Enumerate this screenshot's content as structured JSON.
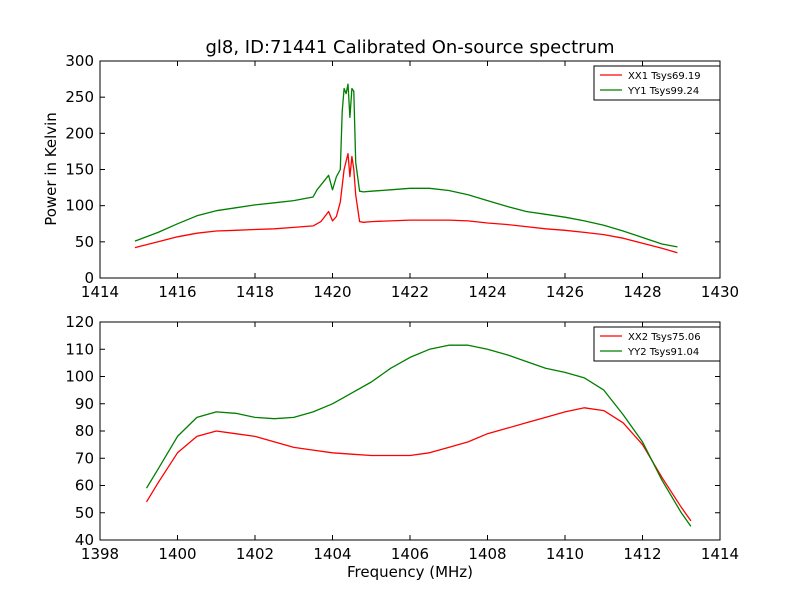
{
  "figure": {
    "title": "gl8, ID:71441 Calibrated On-source spectrum",
    "ylabel": "Power in Kelvin",
    "xlabel": "Frequency (MHz)"
  },
  "colors": {
    "xx": "#ff0000",
    "yy": "#007f00"
  },
  "chart_data": [
    {
      "type": "line",
      "xlim": [
        1414,
        1430
      ],
      "ylim": [
        0,
        300
      ],
      "xticks": [
        1414,
        1416,
        1418,
        1420,
        1422,
        1424,
        1426,
        1428,
        1430
      ],
      "yticks": [
        0,
        50,
        100,
        150,
        200,
        250,
        300
      ],
      "legend": "top-right",
      "grid": false,
      "series": [
        {
          "name": "XX1 Tsys69.19",
          "color": "#ff0000",
          "x": [
            1414.9,
            1415.5,
            1416.0,
            1416.5,
            1417.0,
            1417.5,
            1418.0,
            1418.5,
            1419.0,
            1419.5,
            1419.7,
            1419.9,
            1420.0,
            1420.1,
            1420.2,
            1420.3,
            1420.4,
            1420.45,
            1420.5,
            1420.55,
            1420.6,
            1420.7,
            1420.8,
            1421.0,
            1421.5,
            1422.0,
            1422.5,
            1423.0,
            1423.5,
            1424.0,
            1424.5,
            1425.0,
            1425.5,
            1426.0,
            1426.5,
            1427.0,
            1427.5,
            1428.0,
            1428.5,
            1428.9
          ],
          "y": [
            42,
            50,
            57,
            62,
            65,
            66,
            67,
            68,
            70,
            72,
            78,
            92,
            79,
            85,
            105,
            150,
            172,
            140,
            168,
            150,
            115,
            78,
            77,
            78,
            79,
            80,
            80,
            80,
            79,
            76,
            74,
            71,
            68,
            66,
            63,
            60,
            55,
            48,
            41,
            35
          ]
        },
        {
          "name": "YY1 Tsys99.24",
          "color": "#007f00",
          "x": [
            1414.9,
            1415.5,
            1416.0,
            1416.5,
            1417.0,
            1417.5,
            1418.0,
            1418.5,
            1419.0,
            1419.5,
            1419.6,
            1419.8,
            1419.9,
            1420.0,
            1420.1,
            1420.2,
            1420.25,
            1420.3,
            1420.35,
            1420.4,
            1420.45,
            1420.5,
            1420.55,
            1420.6,
            1420.7,
            1420.8,
            1421.0,
            1421.5,
            1422.0,
            1422.5,
            1423.0,
            1423.5,
            1424.0,
            1424.5,
            1425.0,
            1425.5,
            1426.0,
            1426.5,
            1427.0,
            1427.5,
            1428.0,
            1428.5,
            1428.9
          ],
          "y": [
            51,
            63,
            75,
            86,
            93,
            97,
            101,
            104,
            107,
            112,
            122,
            135,
            142,
            122,
            140,
            150,
            230,
            262,
            255,
            268,
            222,
            262,
            258,
            160,
            120,
            119,
            120,
            122,
            124,
            124,
            121,
            115,
            107,
            99,
            92,
            88,
            84,
            79,
            73,
            65,
            56,
            47,
            43
          ]
        }
      ]
    },
    {
      "type": "line",
      "xlim": [
        1398,
        1414
      ],
      "ylim": [
        40,
        120
      ],
      "xticks": [
        1398,
        1400,
        1402,
        1404,
        1406,
        1408,
        1410,
        1412,
        1414
      ],
      "yticks": [
        40,
        50,
        60,
        70,
        80,
        90,
        100,
        110,
        120
      ],
      "legend": "top-right",
      "grid": false,
      "series": [
        {
          "name": "XX2 Tsys75.06",
          "color": "#ff0000",
          "x": [
            1399.2,
            1399.5,
            1400.0,
            1400.5,
            1401.0,
            1401.5,
            1402.0,
            1402.5,
            1403.0,
            1403.5,
            1404.0,
            1404.5,
            1405.0,
            1405.5,
            1406.0,
            1406.5,
            1407.0,
            1407.5,
            1408.0,
            1408.5,
            1409.0,
            1409.5,
            1410.0,
            1410.5,
            1411.0,
            1411.5,
            1412.0,
            1412.5,
            1413.0,
            1413.25
          ],
          "y": [
            54,
            61,
            72,
            78,
            80,
            79,
            78,
            76,
            74,
            73,
            72,
            71.5,
            71,
            71,
            71,
            72,
            74,
            76,
            79,
            81,
            83,
            85,
            87,
            88.5,
            87.5,
            83,
            75,
            63,
            52,
            47
          ]
        },
        {
          "name": "YY2 Tsys91.04",
          "color": "#007f00",
          "x": [
            1399.2,
            1399.5,
            1400.0,
            1400.5,
            1401.0,
            1401.5,
            1402.0,
            1402.5,
            1403.0,
            1403.5,
            1404.0,
            1404.5,
            1405.0,
            1405.5,
            1406.0,
            1406.5,
            1407.0,
            1407.5,
            1408.0,
            1408.5,
            1409.0,
            1409.5,
            1410.0,
            1410.5,
            1411.0,
            1411.5,
            1412.0,
            1412.5,
            1413.0,
            1413.25
          ],
          "y": [
            59,
            66,
            78,
            85,
            87,
            86.5,
            85,
            84.5,
            85,
            87,
            90,
            94,
            98,
            103,
            107,
            110,
            111.5,
            111.5,
            110,
            108,
            105.5,
            103,
            101.5,
            99.5,
            95,
            86,
            76,
            62,
            50,
            45
          ]
        }
      ]
    }
  ]
}
